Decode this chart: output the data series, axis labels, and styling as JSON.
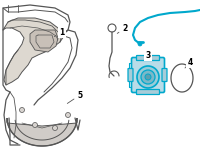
{
  "bg_color": "#ffffff",
  "line_color": "#555555",
  "highlight_color": "#00a8cc",
  "cable_color": "#00a8cc",
  "label_color": "#000000",
  "figsize": [
    2.0,
    1.47
  ],
  "dpi": 100,
  "panel_fill": "#e8e8e8",
  "housing_fill": "#cce8f0",
  "housing_edge": "#00a8cc",
  "cap_fill": "#ffffff"
}
